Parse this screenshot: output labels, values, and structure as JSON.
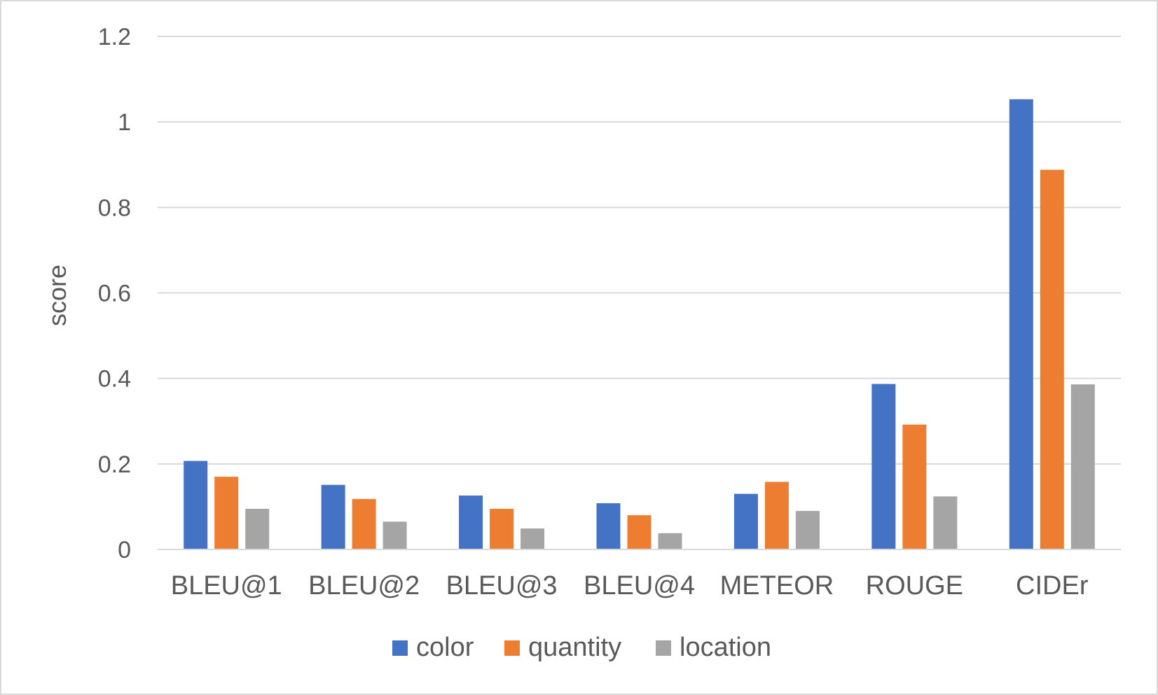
{
  "chart_data": {
    "type": "bar",
    "title": "",
    "xlabel": "",
    "ylabel": "score",
    "ylim": [
      0,
      1.2
    ],
    "yticks": [
      "0",
      "0.2",
      "0.4",
      "0.6",
      "0.8",
      "1",
      "1.2"
    ],
    "grid": true,
    "legend_position": "bottom",
    "categories": [
      "BLEU@1",
      "BLEU@2",
      "BLEU@3",
      "BLEU@4",
      "METEOR",
      "ROUGE",
      "CIDEr"
    ],
    "series": [
      {
        "name": "color",
        "color": "#4472C4",
        "values": [
          0.207,
          0.151,
          0.126,
          0.108,
          0.13,
          0.387,
          1.053
        ]
      },
      {
        "name": "quantity",
        "color": "#ED7D31",
        "values": [
          0.17,
          0.118,
          0.095,
          0.08,
          0.158,
          0.292,
          0.888
        ]
      },
      {
        "name": "location",
        "color": "#A5A5A5",
        "values": [
          0.095,
          0.065,
          0.049,
          0.038,
          0.09,
          0.124,
          0.386
        ]
      }
    ]
  }
}
